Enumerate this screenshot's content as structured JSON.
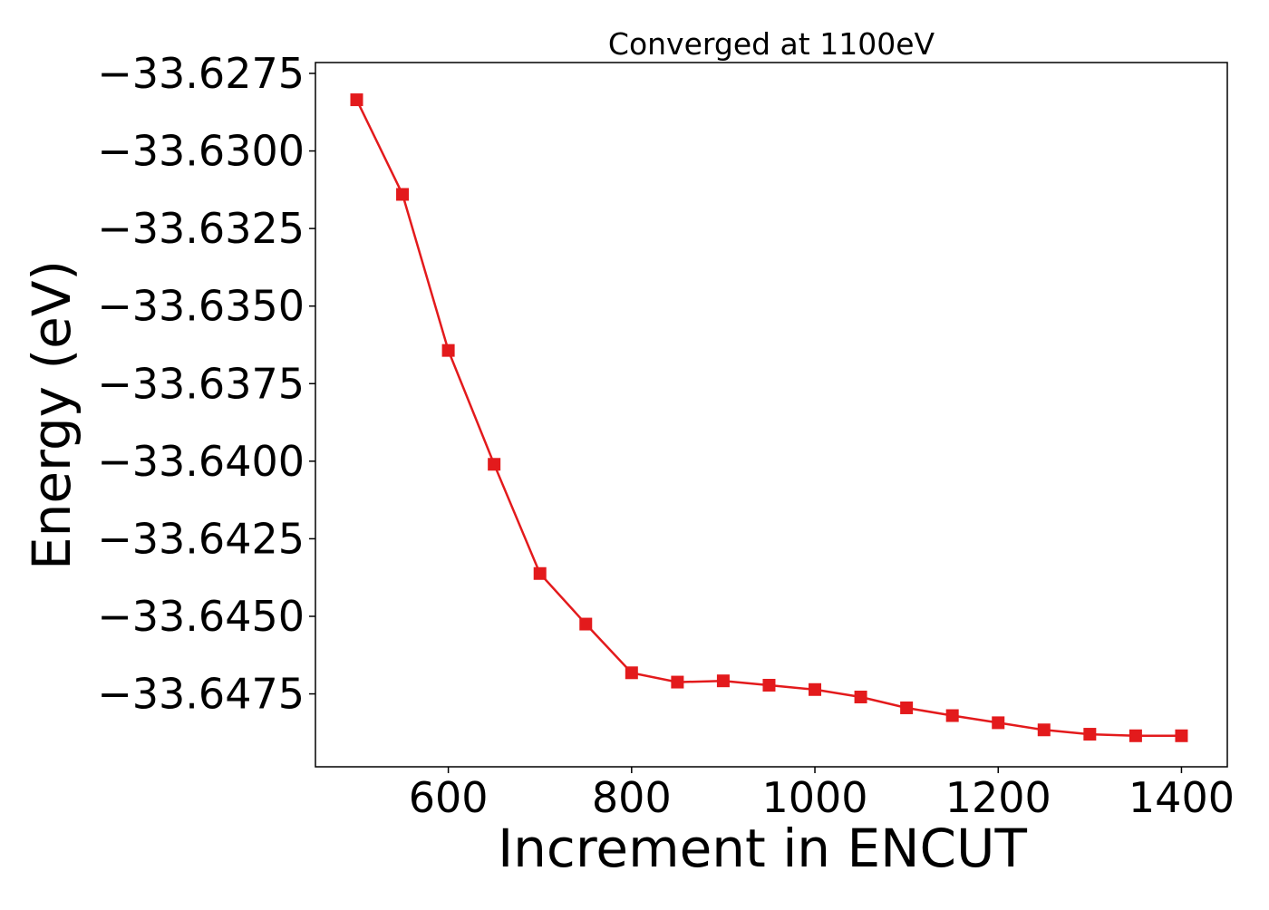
{
  "chart_data": {
    "type": "line",
    "title": "Converged at 1100eV",
    "xlabel": "Increment in ENCUT",
    "ylabel": "Energy (eV)",
    "xlim": [
      455,
      1450
    ],
    "ylim": [
      -33.64985,
      -33.62715
    ],
    "xticks": [
      600,
      800,
      1000,
      1200,
      1400
    ],
    "yticks": [
      -33.6275,
      -33.63,
      -33.6325,
      -33.635,
      -33.6375,
      -33.64,
      -33.6425,
      -33.645,
      -33.6475
    ],
    "yticks_labels": [
      "−33.6275",
      "−33.6300",
      "−33.6325",
      "−33.6350",
      "−33.6375",
      "−33.6400",
      "−33.6425",
      "−33.6450",
      "−33.6475"
    ],
    "xticks_labels": [
      "600",
      "800",
      "1000",
      "1200",
      "1400"
    ],
    "grid": false,
    "legend": "none",
    "series": [
      {
        "color": "#e31a1c",
        "marker": "square",
        "x": [
          500,
          550,
          600,
          650,
          700,
          750,
          800,
          850,
          900,
          950,
          1000,
          1050,
          1100,
          1150,
          1200,
          1250,
          1300,
          1350,
          1400
        ],
        "y": [
          -33.62835,
          -33.6314,
          -33.63643,
          -33.6401,
          -33.64362,
          -33.64525,
          -33.64682,
          -33.64712,
          -33.64708,
          -33.64722,
          -33.64736,
          -33.6476,
          -33.64795,
          -33.6482,
          -33.64843,
          -33.64866,
          -33.6488,
          -33.64885,
          -33.64885
        ]
      }
    ]
  }
}
